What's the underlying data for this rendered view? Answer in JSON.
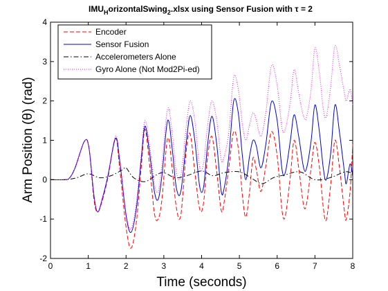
{
  "chart_data": {
    "type": "line",
    "title": {
      "prefix": "IMU",
      "sub1": "H",
      "middle": "orizontalSwing",
      "sub2": "2",
      "suffix": ".xlsx using Sensor Fusion with τ = 2"
    },
    "xlabel": "Time (seconds)",
    "ylabel": "Arm Position (θ) (rad)",
    "xlim": [
      0,
      8
    ],
    "ylim": [
      -2,
      4
    ],
    "xticks": [
      "0",
      "1",
      "2",
      "3",
      "4",
      "5",
      "6",
      "7",
      "8"
    ],
    "yticks": [
      "-2",
      "-1",
      "0",
      "1",
      "2",
      "3",
      "4"
    ],
    "grid": false,
    "legend_position": "top-left",
    "series": [
      {
        "name": "Encoder",
        "color": "#ff0000",
        "dash": "dashed",
        "points": [
          [
            0,
            0
          ],
          [
            0.35,
            0
          ],
          [
            0.5,
            0.04
          ],
          [
            0.65,
            0.3
          ],
          [
            0.9,
            0.98
          ],
          [
            1.02,
            0.8
          ],
          [
            1.15,
            -0.5
          ],
          [
            1.25,
            -0.82
          ],
          [
            1.38,
            -0.5
          ],
          [
            1.52,
            0.05
          ],
          [
            1.72,
            1.05
          ],
          [
            1.83,
            0.3
          ],
          [
            2.0,
            -1.2
          ],
          [
            2.13,
            -1.74
          ],
          [
            2.27,
            -1.1
          ],
          [
            2.4,
            0.3
          ],
          [
            2.5,
            1.28
          ],
          [
            2.62,
            0.4
          ],
          [
            2.75,
            -0.85
          ],
          [
            2.85,
            -1.0
          ],
          [
            2.95,
            -0.5
          ],
          [
            3.1,
            1.05
          ],
          [
            3.22,
            0.3
          ],
          [
            3.33,
            -0.7
          ],
          [
            3.45,
            -0.9
          ],
          [
            3.6,
            0.8
          ],
          [
            3.7,
            1.15
          ],
          [
            3.82,
            0.2
          ],
          [
            3.95,
            -0.75
          ],
          [
            4.05,
            -0.6
          ],
          [
            4.15,
            0.5
          ],
          [
            4.27,
            1.1
          ],
          [
            4.4,
            0.2
          ],
          [
            4.52,
            -0.78
          ],
          [
            4.6,
            -0.55
          ],
          [
            4.72,
            0.3
          ],
          [
            4.85,
            1.22
          ],
          [
            4.97,
            0.8
          ],
          [
            5.08,
            -0.4
          ],
          [
            5.17,
            -0.95
          ],
          [
            5.27,
            -0.3
          ],
          [
            5.36,
            0.55
          ],
          [
            5.45,
            0.25
          ],
          [
            5.57,
            -0.3
          ],
          [
            5.7,
            0.35
          ],
          [
            5.85,
            1.22
          ],
          [
            6.0,
            0.6
          ],
          [
            6.13,
            -0.8
          ],
          [
            6.22,
            -0.9
          ],
          [
            6.35,
            0.1
          ],
          [
            6.45,
            1.0
          ],
          [
            6.57,
            0.3
          ],
          [
            6.7,
            -0.65
          ],
          [
            6.78,
            -0.6
          ],
          [
            6.9,
            0.3
          ],
          [
            7.0,
            0.95
          ],
          [
            7.12,
            0.3
          ],
          [
            7.22,
            -0.7
          ],
          [
            7.3,
            -1.02
          ],
          [
            7.42,
            -0.1
          ],
          [
            7.53,
            1.0
          ],
          [
            7.65,
            0.3
          ],
          [
            7.78,
            -0.8
          ],
          [
            7.83,
            -1.0
          ],
          [
            7.93,
            -0.3
          ],
          [
            8.0,
            0.9
          ]
        ]
      },
      {
        "name": "Sensor Fusion",
        "color": "#0000cc",
        "dash": "solid",
        "points": [
          [
            0,
            0
          ],
          [
            0.35,
            0
          ],
          [
            0.5,
            0.04
          ],
          [
            0.65,
            0.3
          ],
          [
            0.9,
            0.98
          ],
          [
            1.02,
            0.8
          ],
          [
            1.15,
            -0.4
          ],
          [
            1.25,
            -0.82
          ],
          [
            1.38,
            -0.45
          ],
          [
            1.52,
            0.1
          ],
          [
            1.72,
            1.05
          ],
          [
            1.83,
            0.5
          ],
          [
            2.0,
            -0.9
          ],
          [
            2.13,
            -1.34
          ],
          [
            2.27,
            -0.75
          ],
          [
            2.4,
            0.5
          ],
          [
            2.5,
            1.36
          ],
          [
            2.62,
            0.7
          ],
          [
            2.75,
            -0.3
          ],
          [
            2.85,
            -0.5
          ],
          [
            2.95,
            0.1
          ],
          [
            3.1,
            1.5
          ],
          [
            3.22,
            0.8
          ],
          [
            3.33,
            -0.2
          ],
          [
            3.45,
            -0.3
          ],
          [
            3.6,
            1.0
          ],
          [
            3.7,
            1.63
          ],
          [
            3.82,
            1.0
          ],
          [
            3.95,
            -0.18
          ],
          [
            4.05,
            -0.2
          ],
          [
            4.15,
            0.8
          ],
          [
            4.27,
            1.61
          ],
          [
            4.4,
            0.9
          ],
          [
            4.52,
            -0.3
          ],
          [
            4.6,
            -0.2
          ],
          [
            4.72,
            0.6
          ],
          [
            4.85,
            2.0
          ],
          [
            4.97,
            1.7
          ],
          [
            5.08,
            0.6
          ],
          [
            5.17,
            0.0
          ],
          [
            5.27,
            0.6
          ],
          [
            5.36,
            1.0
          ],
          [
            5.45,
            0.85
          ],
          [
            5.57,
            0.3
          ],
          [
            5.7,
            0.9
          ],
          [
            5.85,
            1.98
          ],
          [
            6.0,
            1.5
          ],
          [
            6.13,
            0.25
          ],
          [
            6.22,
            0.2
          ],
          [
            6.35,
            1.0
          ],
          [
            6.45,
            1.65
          ],
          [
            6.57,
            1.1
          ],
          [
            6.7,
            0.3
          ],
          [
            6.78,
            0.3
          ],
          [
            6.9,
            1.0
          ],
          [
            7.0,
            1.9
          ],
          [
            7.12,
            1.2
          ],
          [
            7.22,
            0.3
          ],
          [
            7.3,
            0.0
          ],
          [
            7.42,
            0.7
          ],
          [
            7.53,
            1.9
          ],
          [
            7.65,
            1.2
          ],
          [
            7.78,
            0.2
          ],
          [
            7.83,
            -0.1
          ],
          [
            7.93,
            0.4
          ],
          [
            8.0,
            0.08
          ]
        ]
      },
      {
        "name": "Accelerometers Alone",
        "color": "#000000",
        "dash": "dashdot",
        "points": [
          [
            0,
            0
          ],
          [
            0.4,
            0
          ],
          [
            0.7,
            0.05
          ],
          [
            1.0,
            0.15
          ],
          [
            1.3,
            0.05
          ],
          [
            1.6,
            0.1
          ],
          [
            1.9,
            0.25
          ],
          [
            2.0,
            0.3
          ],
          [
            2.2,
            0.05
          ],
          [
            2.5,
            -0.05
          ],
          [
            2.8,
            0.12
          ],
          [
            3.0,
            0.18
          ],
          [
            3.3,
            0.05
          ],
          [
            3.6,
            0.1
          ],
          [
            4.0,
            0.22
          ],
          [
            4.3,
            0.1
          ],
          [
            4.6,
            0.18
          ],
          [
            5.0,
            0.2
          ],
          [
            5.3,
            0.05
          ],
          [
            5.6,
            -0.1
          ],
          [
            5.9,
            0.05
          ],
          [
            6.2,
            0.12
          ],
          [
            6.6,
            0.2
          ],
          [
            7.0,
            0.0
          ],
          [
            7.4,
            0.05
          ],
          [
            7.8,
            0.2
          ],
          [
            8.0,
            0.15
          ]
        ]
      },
      {
        "name": "Gyro Alone (Not Mod2Pi-ed)",
        "color": "#ff00ff",
        "dash": "dotted",
        "points": [
          [
            0,
            0
          ],
          [
            0.35,
            0
          ],
          [
            0.5,
            0.04
          ],
          [
            0.65,
            0.3
          ],
          [
            0.9,
            0.98
          ],
          [
            1.02,
            0.8
          ],
          [
            1.15,
            -0.4
          ],
          [
            1.25,
            -0.82
          ],
          [
            1.38,
            -0.45
          ],
          [
            1.52,
            0.1
          ],
          [
            1.72,
            1.1
          ],
          [
            1.83,
            0.55
          ],
          [
            2.0,
            -0.85
          ],
          [
            2.13,
            -1.25
          ],
          [
            2.27,
            -0.6
          ],
          [
            2.4,
            0.6
          ],
          [
            2.5,
            1.5
          ],
          [
            2.62,
            0.9
          ],
          [
            2.75,
            -0.1
          ],
          [
            2.85,
            -0.3
          ],
          [
            2.95,
            0.4
          ],
          [
            3.1,
            1.8
          ],
          [
            3.22,
            1.2
          ],
          [
            3.33,
            0.2
          ],
          [
            3.45,
            0.1
          ],
          [
            3.6,
            1.4
          ],
          [
            3.7,
            2.0
          ],
          [
            3.82,
            1.5
          ],
          [
            3.95,
            0.3
          ],
          [
            4.05,
            0.4
          ],
          [
            4.15,
            1.3
          ],
          [
            4.27,
            2.0
          ],
          [
            4.4,
            1.5
          ],
          [
            4.52,
            0.5
          ],
          [
            4.6,
            0.6
          ],
          [
            4.72,
            1.2
          ],
          [
            4.85,
            2.6
          ],
          [
            4.97,
            2.3
          ],
          [
            5.08,
            1.4
          ],
          [
            5.17,
            1.0
          ],
          [
            5.27,
            1.4
          ],
          [
            5.36,
            1.7
          ],
          [
            5.45,
            1.5
          ],
          [
            5.57,
            1.1
          ],
          [
            5.7,
            1.7
          ],
          [
            5.85,
            2.9
          ],
          [
            6.0,
            2.4
          ],
          [
            6.13,
            1.3
          ],
          [
            6.22,
            1.3
          ],
          [
            6.35,
            2.0
          ],
          [
            6.45,
            2.8
          ],
          [
            6.57,
            2.2
          ],
          [
            6.7,
            1.6
          ],
          [
            6.78,
            1.6
          ],
          [
            6.9,
            2.3
          ],
          [
            7.0,
            3.35
          ],
          [
            7.12,
            2.7
          ],
          [
            7.22,
            1.8
          ],
          [
            7.3,
            1.6
          ],
          [
            7.42,
            2.4
          ],
          [
            7.53,
            3.4
          ],
          [
            7.65,
            2.9
          ],
          [
            7.78,
            2.2
          ],
          [
            7.83,
            2.0
          ],
          [
            7.93,
            2.3
          ],
          [
            8.0,
            1.9
          ]
        ]
      }
    ]
  }
}
